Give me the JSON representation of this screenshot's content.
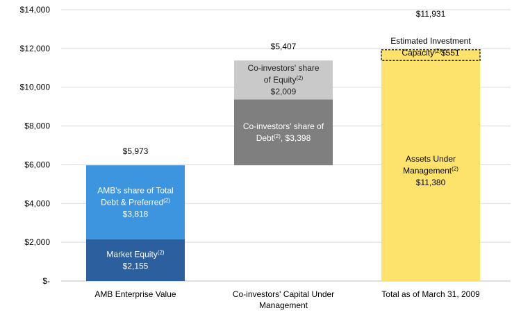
{
  "chart_data": {
    "type": "bar",
    "subtype": "waterfall-stacked",
    "title": "",
    "xlabel": "",
    "ylabel": "",
    "ylim": [
      0,
      14000
    ],
    "yticks": [
      {
        "value": 0,
        "label": "$-"
      },
      {
        "value": 2000,
        "label": "$2,000"
      },
      {
        "value": 4000,
        "label": "$4,000"
      },
      {
        "value": 6000,
        "label": "$6,000"
      },
      {
        "value": 8000,
        "label": "$8,000"
      },
      {
        "value": 10000,
        "label": "$10,000"
      },
      {
        "value": 12000,
        "label": "$12,000"
      },
      {
        "value": 14000,
        "label": "$14,000"
      }
    ],
    "grid": true,
    "legend": "none",
    "categories": [
      {
        "lines": [
          "AMB Enterprise Value"
        ]
      },
      {
        "lines": [
          "Co-investors' Capital Under",
          "Management"
        ]
      },
      {
        "lines": [
          "Total as of March 31, 2009"
        ]
      }
    ],
    "totals": [
      "$5,973",
      "$5,407",
      "$11,931"
    ],
    "segments": [
      {
        "id": "market-equity",
        "category": 0,
        "base": 0,
        "value": 2155,
        "color": "#2c5f9e",
        "text_color": "#ffffff",
        "style": "solid",
        "label_lines": [
          [
            {
              "t": "Market Equity"
            },
            {
              "t": "(2)",
              "sup": true
            }
          ],
          [
            {
              "t": "$2,155"
            }
          ]
        ]
      },
      {
        "id": "amb-debt-preferred",
        "category": 0,
        "base": 2155,
        "value": 3818,
        "color": "#3d95e0",
        "text_color": "#ffffff",
        "style": "solid",
        "label_lines": [
          [
            {
              "t": "AMB's share of Total"
            }
          ],
          [
            {
              "t": "Debt & Preferred"
            },
            {
              "t": "(2)",
              "sup": true
            }
          ],
          [
            {
              "t": "$3,818"
            }
          ]
        ]
      },
      {
        "id": "coinvestor-debt",
        "category": 1,
        "base": 5973,
        "value": 3398,
        "color": "#7f7f7f",
        "text_color": "#ffffff",
        "style": "solid",
        "label_lines": [
          [
            {
              "t": "Co-investors' share of"
            }
          ],
          [
            {
              "t": "Debt"
            },
            {
              "t": "(2)",
              "sup": true
            },
            {
              "t": ",  $3,398"
            }
          ]
        ]
      },
      {
        "id": "coinvestor-equity",
        "category": 1,
        "base": 9371,
        "value": 2009,
        "color": "#c9c9c9",
        "text_color": "#222222",
        "style": "solid",
        "label_lines": [
          [
            {
              "t": "Co-investors' share"
            }
          ],
          [
            {
              "t": "of Equity"
            },
            {
              "t": "(2)",
              "sup": true
            }
          ],
          [
            {
              "t": "$2,009"
            }
          ]
        ]
      },
      {
        "id": "assets-under-management",
        "category": 2,
        "base": 0,
        "value": 11380,
        "color": "#fde36b",
        "text_color": "#000000",
        "style": "solid",
        "label_lines": [
          [
            {
              "t": "Assets Under"
            }
          ],
          [
            {
              "t": "Management"
            },
            {
              "t": "(2)",
              "sup": true
            }
          ],
          [
            {
              "t": "$11,380"
            }
          ]
        ]
      },
      {
        "id": "investment-capacity",
        "category": 2,
        "base": 11380,
        "value": 551,
        "color": "#fde36b",
        "text_color": "#000000",
        "style": "dashed",
        "label_lines": [
          [
            {
              "t": "Estimated Investment"
            }
          ],
          [
            {
              "t": "Capacity"
            },
            {
              "t": "(2)",
              "sup": true
            },
            {
              "t": "$551"
            }
          ]
        ]
      }
    ]
  }
}
